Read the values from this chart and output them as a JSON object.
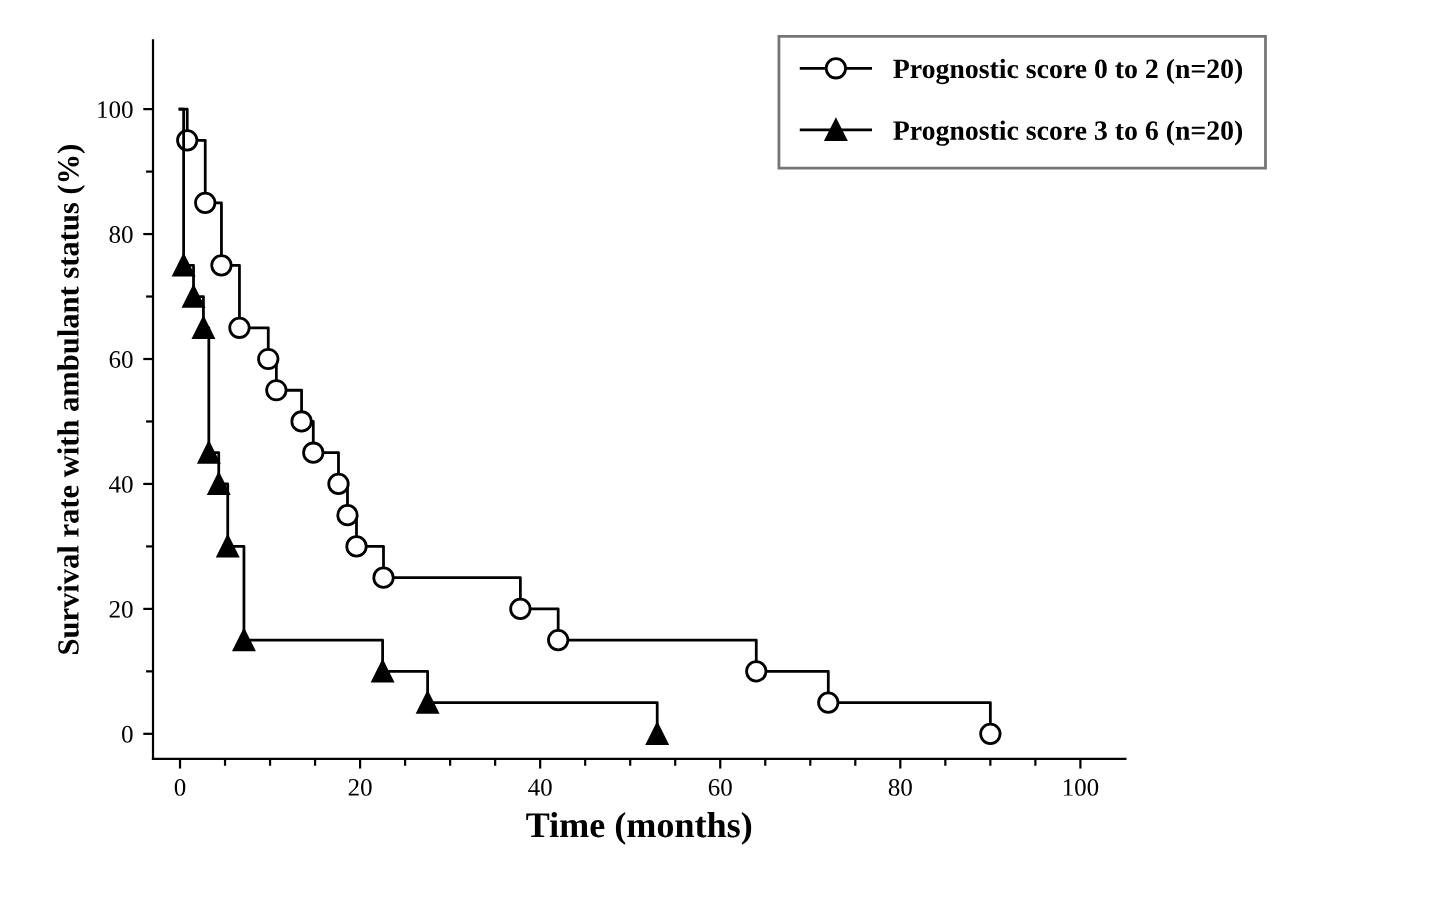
{
  "chart_data": {
    "type": "step",
    "xlabel": "Time (months)",
    "ylabel": "Survival rate with ambulant status (%)",
    "xlim": [
      -3,
      105
    ],
    "ylim": [
      -4,
      111
    ],
    "xticks": [
      0,
      {
        "value": 5,
        "label": null
      },
      {
        "value": 10,
        "label": null
      },
      {
        "value": 15,
        "label": null
      },
      20,
      {
        "value": 25,
        "label": null
      },
      {
        "value": 30,
        "label": null
      },
      {
        "value": 35,
        "label": null
      },
      40,
      {
        "value": 45,
        "label": null
      },
      {
        "value": 50,
        "label": null
      },
      {
        "value": 55,
        "label": null
      },
      60,
      {
        "value": 65,
        "label": null
      },
      {
        "value": 70,
        "label": null
      },
      {
        "value": 75,
        "label": null
      },
      80,
      {
        "value": 85,
        "label": null
      },
      {
        "value": 90,
        "label": null
      },
      {
        "value": 95,
        "label": null
      },
      100
    ],
    "yticks": [
      0,
      {
        "value": 10,
        "label": null
      },
      20,
      {
        "value": 30,
        "label": null
      },
      40,
      {
        "value": 50,
        "label": null
      },
      60,
      {
        "value": 70,
        "label": null
      },
      80,
      {
        "value": 90,
        "label": null
      },
      100
    ],
    "grid": false,
    "legend": "top right",
    "series": [
      {
        "name": "Prognostic score 0 to 2 (n=20)",
        "color": "#000000",
        "marker": "circle",
        "x": [
          0,
          0.8,
          2.8,
          4.6,
          6.6,
          9.8,
          10.7,
          13.5,
          14.8,
          17.6,
          18.6,
          19.6,
          22.6,
          37.8,
          42,
          64,
          72,
          90
        ],
        "values": [
          100,
          95,
          85,
          75,
          65,
          60,
          55,
          50,
          45,
          40,
          35,
          30,
          25,
          20,
          15,
          10,
          5,
          0
        ]
      },
      {
        "name": "Prognostic score 3 to 6 (n=20)",
        "color": "#000000",
        "marker": "triangle",
        "x": [
          0,
          0.4,
          1.5,
          2.6,
          3.2,
          4.3,
          5.3,
          7.1,
          22.5,
          27.5,
          53
        ],
        "values": [
          100,
          75,
          70,
          65,
          45,
          40,
          30,
          15,
          10,
          5,
          0
        ]
      }
    ]
  }
}
